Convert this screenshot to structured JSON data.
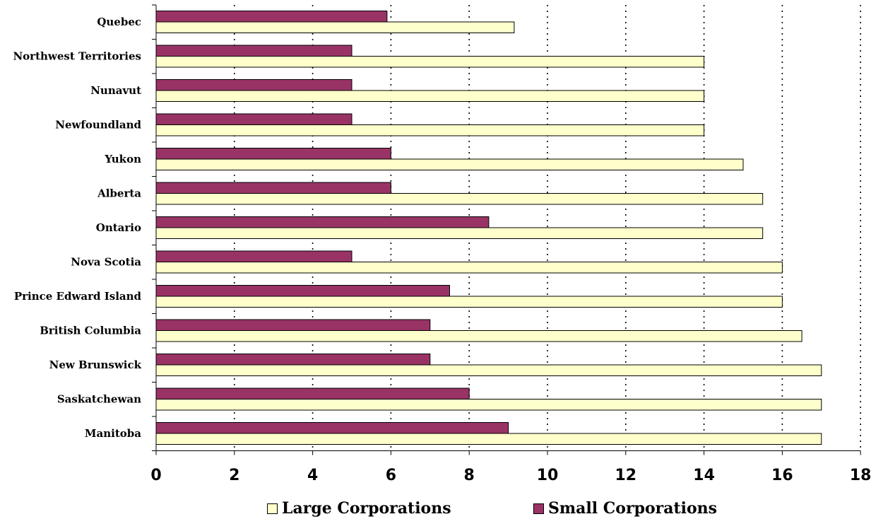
{
  "chart_data": {
    "type": "bar",
    "orientation": "horizontal",
    "categories": [
      "Quebec",
      "Northwest Territories",
      "Nunavut",
      "Newfoundland",
      "Yukon",
      "Alberta",
      "Ontario",
      "Nova Scotia",
      "Prince Edward Island",
      "British Columbia",
      "New Brunswick",
      "Saskatchewan",
      "Manitoba"
    ],
    "series": [
      {
        "name": "Small Corporations",
        "color": "#993366",
        "values": [
          5.9,
          5,
          5,
          5,
          6,
          6,
          8.5,
          5,
          7.5,
          7,
          7,
          8,
          9
        ]
      },
      {
        "name": "Large Corporations",
        "color": "#FFFFCC",
        "values": [
          9.15,
          14,
          14,
          14,
          15,
          15.5,
          15.5,
          16,
          16,
          16.5,
          17,
          17,
          17
        ]
      }
    ],
    "xlim": [
      0,
      18
    ],
    "xticks": [
      "0",
      "2",
      "4",
      "6",
      "8",
      "10",
      "12",
      "14",
      "16",
      "18"
    ],
    "grid": "vertical dotted",
    "legend_position": "bottom",
    "legend_order": [
      "Large Corporations",
      "Small Corporations"
    ]
  }
}
